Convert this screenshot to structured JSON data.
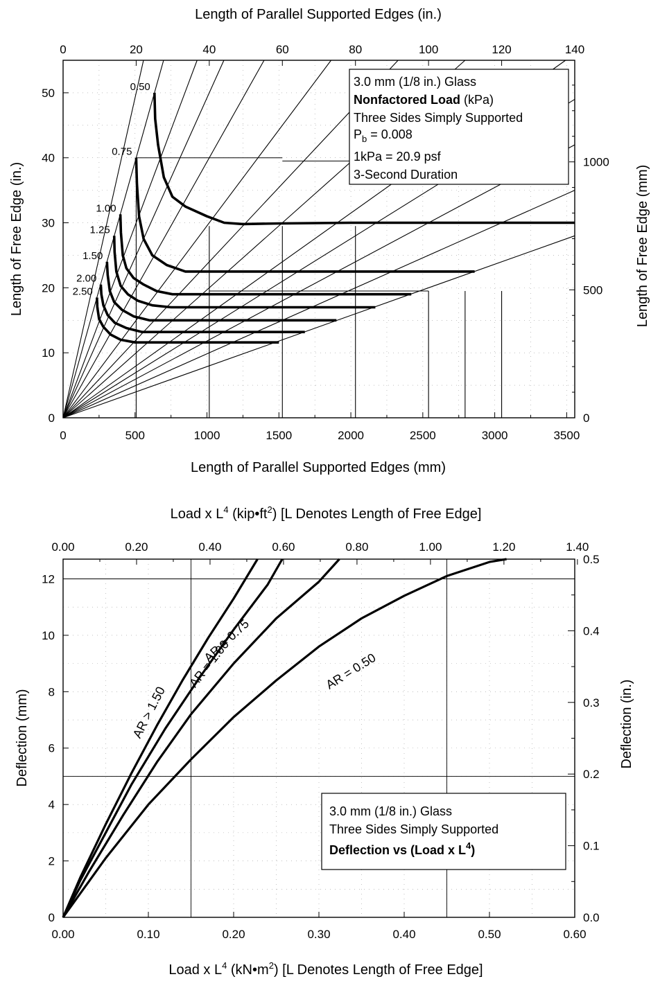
{
  "chart_data": [
    {
      "type": "line",
      "top_axis_title": "Length of Parallel Supported Edges (in.)",
      "xlabel": "Length of Parallel Supported Edges (mm)",
      "ylabel": "Length of Free Edge (in.)",
      "right_axis_title": "Length of Free Edge (mm)",
      "x_range_mm": [
        0,
        3556
      ],
      "y_range_in": [
        0,
        55
      ],
      "x_ticks": [
        "0",
        "500",
        "1000",
        "1500",
        "2000",
        "2500",
        "3000",
        "3500"
      ],
      "top_ticks": [
        "0",
        "20",
        "40",
        "60",
        "80",
        "100",
        "120",
        "140"
      ],
      "y_ticks": [
        "0",
        "10",
        "20",
        "30",
        "40",
        "50"
      ],
      "right_ticks": [
        "0",
        "500",
        "1000"
      ],
      "legend": {
        "line1": "3.0 mm (1/8 in.) Glass",
        "line2_bold": "Nonfactored Load",
        "line2_rest": " (kPa)",
        "line3": "Three Sides Simply Supported",
        "line4_main": "P",
        "line4_sub": "b",
        "line4_rest": " = 0.008",
        "line5": "1kPa = 20.9 psf",
        "line6": "3-Second Duration"
      },
      "series": [
        {
          "name": "0.50",
          "label": "0.50",
          "points": [
            [
              635,
              50
            ],
            [
              640,
              46
            ],
            [
              660,
              42
            ],
            [
              700,
              37
            ],
            [
              760,
              34
            ],
            [
              850,
              32.5
            ],
            [
              1000,
              31
            ],
            [
              1120,
              30
            ],
            [
              1250,
              29.8
            ],
            [
              1500,
              29.9
            ],
            [
              2000,
              30
            ],
            [
              2500,
              30
            ],
            [
              3000,
              30
            ],
            [
              3556,
              30
            ]
          ]
        },
        {
          "name": "0.75",
          "label": "0.75",
          "points": [
            [
              508,
              40
            ],
            [
              513,
              36
            ],
            [
              528,
              31
            ],
            [
              560,
              27.5
            ],
            [
              620,
              25
            ],
            [
              720,
              23.5
            ],
            [
              850,
              22.5
            ],
            [
              1000,
              22.5
            ],
            [
              1500,
              22.5
            ],
            [
              2000,
              22.5
            ],
            [
              2500,
              22.5
            ],
            [
              2860,
              22.5
            ]
          ]
        },
        {
          "name": "1.00",
          "label": "1.00",
          "points": [
            [
              398,
              31.3
            ],
            [
              402,
              28.5
            ],
            [
              415,
              25
            ],
            [
              440,
              23
            ],
            [
              490,
              21.5
            ],
            [
              560,
              20.5
            ],
            [
              650,
              19.5
            ],
            [
              760,
              19
            ],
            [
              1000,
              19
            ],
            [
              1500,
              19
            ],
            [
              2000,
              19
            ],
            [
              2420,
              19
            ]
          ]
        },
        {
          "name": "1.25",
          "label": "1.25",
          "points": [
            [
              355,
              28
            ],
            [
              358,
              25.5
            ],
            [
              370,
              22.5
            ],
            [
              400,
              20.3
            ],
            [
              450,
              19
            ],
            [
              520,
              18
            ],
            [
              620,
              17.3
            ],
            [
              750,
              17
            ],
            [
              1000,
              17
            ],
            [
              1500,
              17
            ],
            [
              2000,
              17
            ],
            [
              2170,
              17
            ]
          ]
        },
        {
          "name": "1.50",
          "label": "1.50",
          "points": [
            [
              305,
              24
            ],
            [
              310,
              22
            ],
            [
              325,
              19.5
            ],
            [
              355,
              17.8
            ],
            [
              410,
              16.6
            ],
            [
              490,
              15.6
            ],
            [
              600,
              15
            ],
            [
              800,
              15
            ],
            [
              1200,
              15
            ],
            [
              1500,
              15
            ],
            [
              1900,
              15
            ]
          ]
        },
        {
          "name": "2.00",
          "label": "2.00",
          "points": [
            [
              262,
              20.5
            ],
            [
              266,
              19
            ],
            [
              280,
              17.3
            ],
            [
              310,
              15.8
            ],
            [
              360,
              14.6
            ],
            [
              440,
              13.8
            ],
            [
              550,
              13.2
            ],
            [
              800,
              13.2
            ],
            [
              1200,
              13.2
            ],
            [
              1680,
              13.2
            ]
          ]
        },
        {
          "name": "2.50",
          "label": "2.50",
          "points": [
            [
              235,
              18.5
            ],
            [
              238,
              17
            ],
            [
              250,
              15.2
            ],
            [
              280,
              14
            ],
            [
              330,
              12.8
            ],
            [
              400,
              12
            ],
            [
              500,
              11.6
            ],
            [
              800,
              11.6
            ],
            [
              1100,
              11.6
            ],
            [
              1500,
              11.6
            ]
          ]
        }
      ],
      "aspect_ratio_lines": [
        0.2,
        0.25,
        0.3,
        0.35,
        0.4,
        0.5,
        0.6,
        0.75,
        1.0,
        1.25,
        1.5,
        2.0,
        2.5
      ],
      "vertical_drops_in": [
        [
          20,
          40
        ],
        [
          40,
          29.5
        ],
        [
          60,
          29.5
        ],
        [
          80,
          29.5
        ],
        [
          100,
          19.5
        ],
        [
          110,
          19.5
        ],
        [
          120,
          19.5
        ]
      ],
      "horizontal_guides_in": [
        [
          40,
          20,
          60
        ],
        [
          39.5,
          60,
          120
        ],
        [
          19.5,
          40,
          100
        ]
      ]
    },
    {
      "type": "line",
      "top_axis_title_main": "Load x L",
      "top_axis_title_sup": "4",
      "top_axis_title_mid": " (kip",
      "top_axis_title_dot": "•",
      "top_axis_title_unit": "ft",
      "top_axis_title_sup2": "2",
      "top_axis_title_end": ")  [L Denotes Length of Free Edge]",
      "xlabel_main": "Load x L",
      "xlabel_sup": "4",
      "xlabel_mid": " (kN",
      "xlabel_dot": "•",
      "xlabel_unit": "m",
      "xlabel_sup2": "2",
      "xlabel_end": ")  [L Denotes Length of Free Edge]",
      "ylabel": "Deflection (mm)",
      "right_axis_title": "Deflection (in.)",
      "x_range": [
        0,
        0.6
      ],
      "y_range": [
        0,
        12.7
      ],
      "x_ticks": [
        "0.00",
        "0.10",
        "0.20",
        "0.30",
        "0.40",
        "0.50",
        "0.60"
      ],
      "top_ticks": [
        "0.00",
        "0.20",
        "0.40",
        "0.60",
        "0.80",
        "1.00",
        "1.20",
        "1.40"
      ],
      "y_ticks": [
        "0",
        "2",
        "4",
        "6",
        "8",
        "10",
        "12"
      ],
      "right_ticks": [
        "0.0",
        "0.1",
        "0.2",
        "0.3",
        "0.4",
        "0.5"
      ],
      "legend": {
        "line1": "3.0 mm (1/8 in.) Glass",
        "line2": "Three Sides Simply Supported",
        "line3_main": "Deflection vs (Load x L",
        "line3_sup": "4",
        "line3_end": ")"
      },
      "series": [
        {
          "name": "AR > 1.50",
          "label": "AR > 1.50",
          "points": [
            [
              0,
              0
            ],
            [
              0.02,
              1.4
            ],
            [
              0.05,
              3.3
            ],
            [
              0.08,
              5.1
            ],
            [
              0.11,
              6.8
            ],
            [
              0.14,
              8.4
            ],
            [
              0.17,
              9.9
            ],
            [
              0.2,
              11.3
            ],
            [
              0.228,
              12.7
            ]
          ]
        },
        {
          "name": "AR = 1.00",
          "label": "AR = 1.00",
          "points": [
            [
              0,
              0
            ],
            [
              0.02,
              1.3
            ],
            [
              0.05,
              3.0
            ],
            [
              0.08,
              4.7
            ],
            [
              0.12,
              6.7
            ],
            [
              0.16,
              8.5
            ],
            [
              0.2,
              10.2
            ],
            [
              0.24,
              11.8
            ],
            [
              0.257,
              12.7
            ]
          ]
        },
        {
          "name": "AR = 0.75",
          "label": "AR = 0.75",
          "points": [
            [
              0,
              0
            ],
            [
              0.03,
              1.6
            ],
            [
              0.07,
              3.6
            ],
            [
              0.11,
              5.5
            ],
            [
              0.15,
              7.2
            ],
            [
              0.2,
              9.0
            ],
            [
              0.25,
              10.6
            ],
            [
              0.3,
              11.9
            ],
            [
              0.324,
              12.7
            ]
          ]
        },
        {
          "name": "AR = 0.50",
          "label": "AR = 0.50",
          "points": [
            [
              0,
              0
            ],
            [
              0.05,
              2.1
            ],
            [
              0.1,
              4.0
            ],
            [
              0.15,
              5.6
            ],
            [
              0.2,
              7.1
            ],
            [
              0.25,
              8.4
            ],
            [
              0.3,
              9.6
            ],
            [
              0.35,
              10.6
            ],
            [
              0.4,
              11.4
            ],
            [
              0.45,
              12.1
            ],
            [
              0.5,
              12.6
            ],
            [
              0.52,
              12.7
            ]
          ]
        }
      ]
    }
  ]
}
